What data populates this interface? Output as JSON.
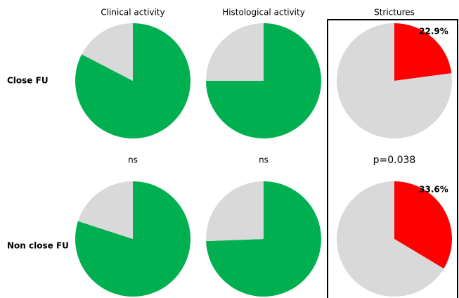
{
  "column_titles": [
    "Clinical activity",
    "Histological activity",
    "Strictures"
  ],
  "row_labels": [
    "Close FU",
    "Non close FU"
  ],
  "comparisons": [
    "ns",
    "ns",
    "p=0.038"
  ],
  "chart_data": [
    {
      "type": "pie",
      "values": [
        82.6,
        17.4
      ],
      "colors": [
        "#00b050",
        "#d9d9d9"
      ]
    },
    {
      "type": "pie",
      "values": [
        75,
        25
      ],
      "colors": [
        "#00b050",
        "#d9d9d9"
      ]
    },
    {
      "type": "pie",
      "values": [
        22.9,
        77.1
      ],
      "colors": [
        "#ff0000",
        "#d9d9d9"
      ],
      "value_labels": [
        "22.9%",
        null
      ]
    },
    {
      "type": "pie",
      "values": [
        80,
        20
      ],
      "colors": [
        "#00b050",
        "#d9d9d9"
      ]
    },
    {
      "type": "pie",
      "values": [
        74.4,
        25.6
      ],
      "colors": [
        "#00b050",
        "#d9d9d9"
      ]
    },
    {
      "type": "pie",
      "values": [
        33.6,
        66.4
      ],
      "colors": [
        "#ff0000",
        "#d9d9d9"
      ],
      "value_labels": [
        "33.6%",
        null
      ]
    }
  ]
}
